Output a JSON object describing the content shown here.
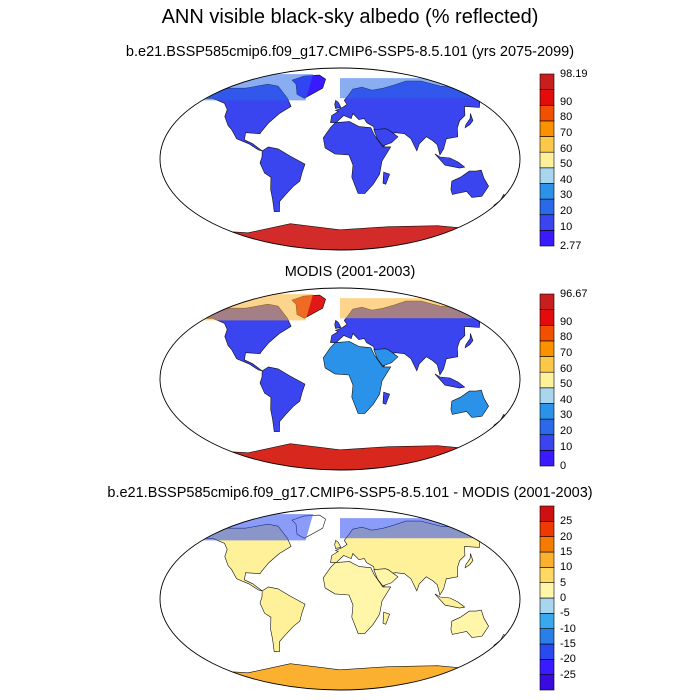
{
  "main_title": "ANN visible black-sky albedo (% reflected)",
  "panels": [
    {
      "id": "model",
      "title": "b.e21.BSSP585cmip6.f09_g17.CMIP6-SSP5-8.5.101 (yrs 2075-2099)",
      "colorbar": {
        "colors": [
          "#3a1aff",
          "#3a44ef",
          "#2a6ae8",
          "#2a92e8",
          "#a8d6ee",
          "#fff09a",
          "#fbc84a",
          "#fa9200",
          "#f05000",
          "#e30b0b",
          "#c81e1e"
        ],
        "labels": [
          "98.19",
          "90",
          "80",
          "70",
          "60",
          "50",
          "40",
          "30",
          "20",
          "10",
          "2.77"
        ]
      }
    },
    {
      "id": "obs",
      "title": "MODIS (2001-2003)",
      "colorbar": {
        "colors": [
          "#3a1aff",
          "#3a44ef",
          "#2a6ae8",
          "#2a92e8",
          "#a8d6ee",
          "#fff09a",
          "#fbc84a",
          "#fa9200",
          "#f05000",
          "#e30b0b",
          "#c81e1e"
        ],
        "labels": [
          "96.67",
          "90",
          "80",
          "70",
          "60",
          "50",
          "40",
          "30",
          "20",
          "10",
          "0"
        ]
      }
    },
    {
      "id": "diff",
      "title": "b.e21.BSSP585cmip6.f09_g17.CMIP6-SSP5-8.5.101 - MODIS (2001-2003)",
      "colorbar": {
        "colors": [
          "#3a0ae0",
          "#3a1aff",
          "#2a4af0",
          "#2a7ee8",
          "#3aa8ee",
          "#a8d6ee",
          "#fff6aa",
          "#ffd862",
          "#fbb030",
          "#f57a00",
          "#ee3a00",
          "#d01010"
        ],
        "labels": [
          "25",
          "20",
          "15",
          "10",
          "5",
          "0",
          "-5",
          "-10",
          "-15",
          "-20",
          "-25"
        ]
      }
    }
  ]
}
